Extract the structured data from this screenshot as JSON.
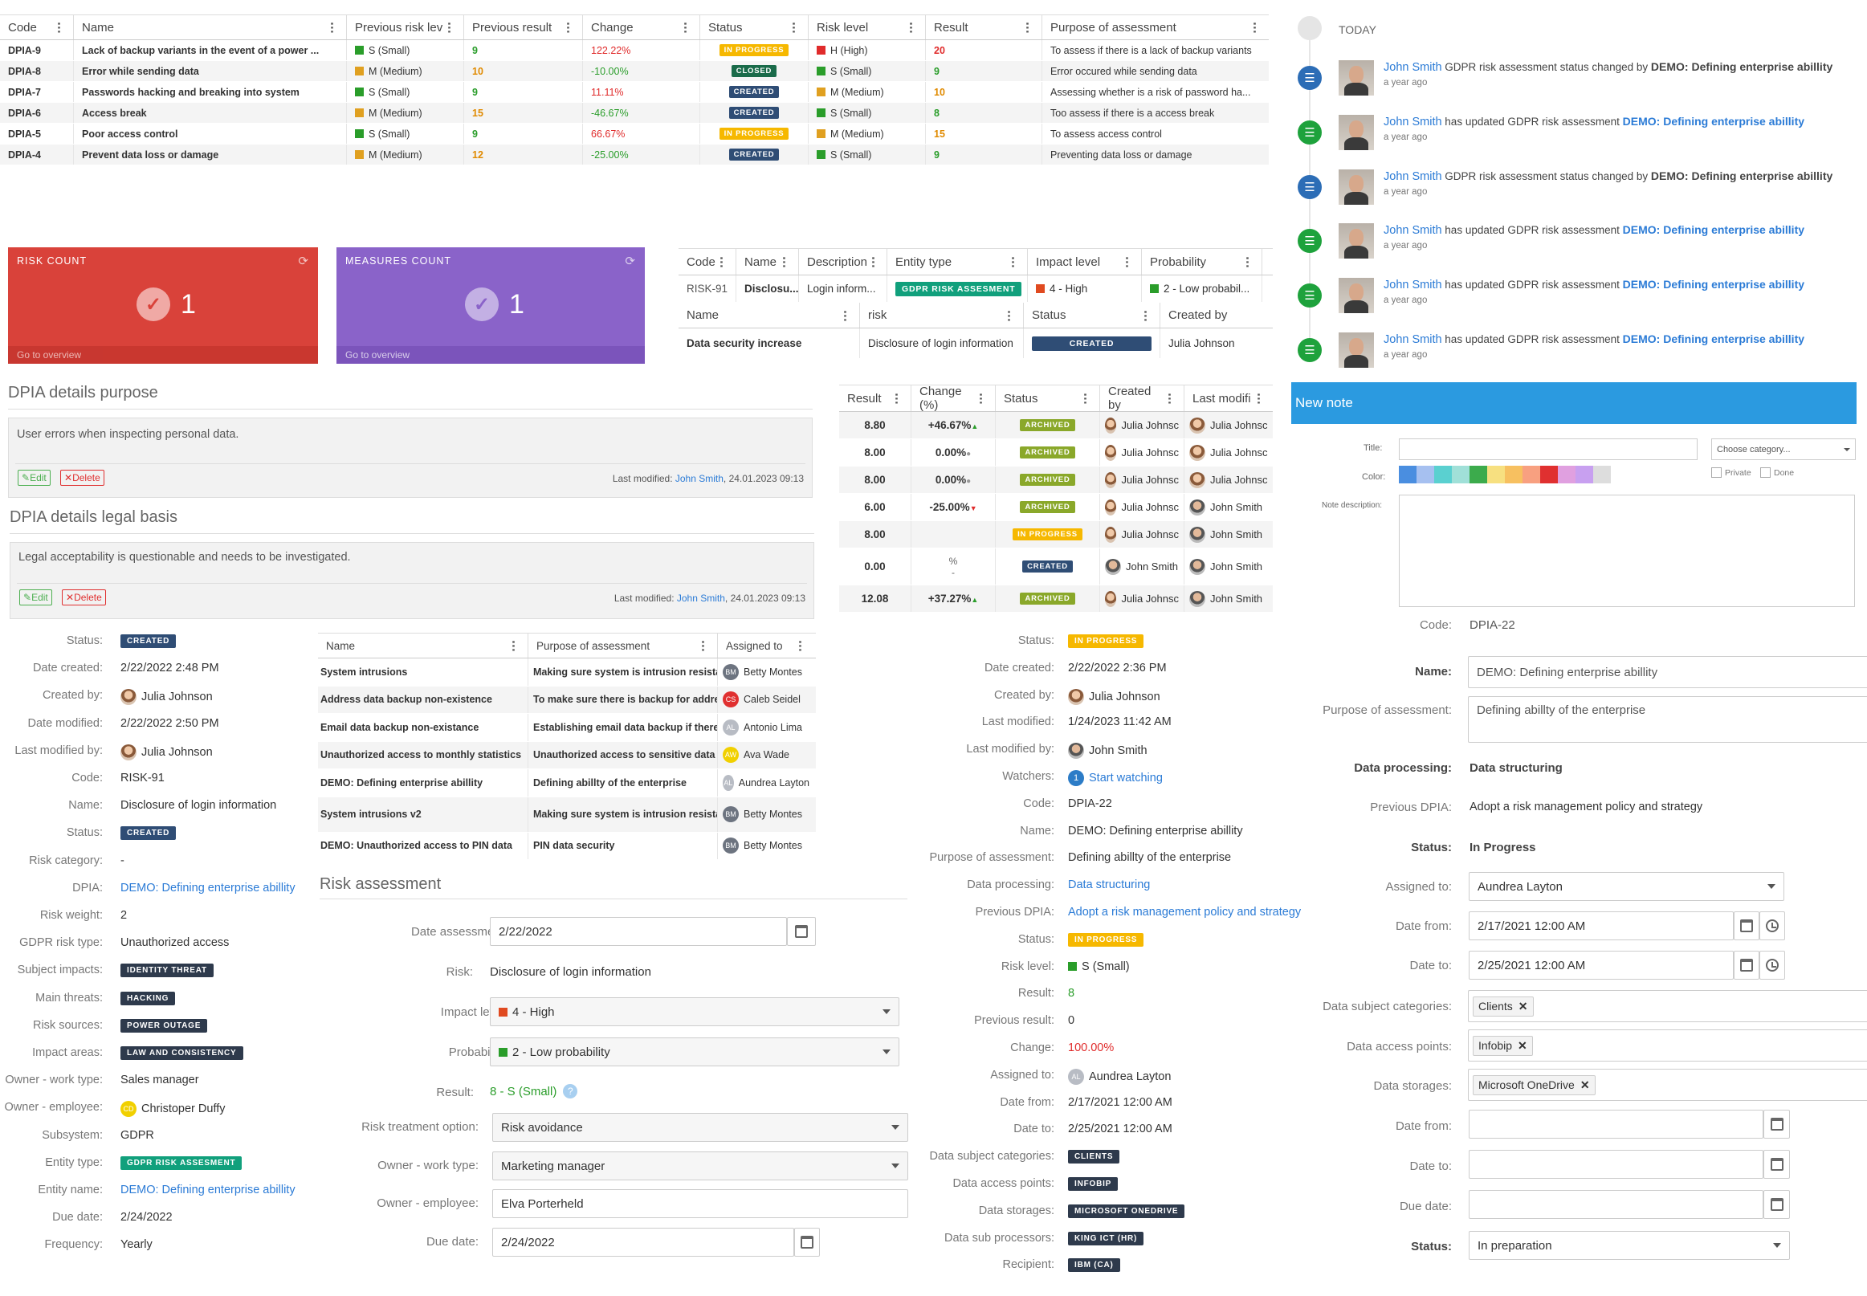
{
  "top_table": {
    "headers": [
      "Code",
      "Name",
      "Previous risk lev",
      "Previous result",
      "Change",
      "Status",
      "Risk level",
      "Result",
      "Purpose of assessment"
    ],
    "rows": [
      {
        "code": "DPIA-9",
        "name": "Lack of backup variants in the event of a power ...",
        "prev_level": "S (Small)",
        "prev_level_color": "#2a9d2a",
        "prev_result": "9",
        "change": "122.22%",
        "status": "IN PROGRESS",
        "risk_level": "H (High)",
        "risk_color": "#e02b2b",
        "result": "20",
        "purpose": "To assess if there is a lack of backup variants"
      },
      {
        "code": "DPIA-8",
        "name": "Error while sending data",
        "prev_level": "M (Medium)",
        "prev_level_color": "#e0a020",
        "prev_result": "10",
        "change": "-10.00%",
        "status": "CLOSED",
        "risk_level": "S (Small)",
        "risk_color": "#2a9d2a",
        "result": "9",
        "purpose": "Error occured while sending data"
      },
      {
        "code": "DPIA-7",
        "name": "Passwords hacking and breaking into system",
        "prev_level": "S (Small)",
        "prev_level_color": "#2a9d2a",
        "prev_result": "9",
        "change": "11.11%",
        "status": "CREATED",
        "risk_level": "M (Medium)",
        "risk_color": "#e0a020",
        "result": "10",
        "purpose": "Assessing whether is a risk of password ha..."
      },
      {
        "code": "DPIA-6",
        "name": "Access break",
        "prev_level": "M (Medium)",
        "prev_level_color": "#e0a020",
        "prev_result": "15",
        "change": "-46.67%",
        "status": "CREATED",
        "risk_level": "S (Small)",
        "risk_color": "#2a9d2a",
        "result": "8",
        "purpose": "Too assess if there is a access break"
      },
      {
        "code": "DPIA-5",
        "name": "Poor access control",
        "prev_level": "S (Small)",
        "prev_level_color": "#2a9d2a",
        "prev_result": "9",
        "change": "66.67%",
        "status": "IN PROGRESS",
        "risk_level": "M (Medium)",
        "risk_color": "#e0a020",
        "result": "15",
        "purpose": "To assess access control"
      },
      {
        "code": "DPIA-4",
        "name": "Prevent data loss or damage",
        "prev_level": "M (Medium)",
        "prev_level_color": "#e0a020",
        "prev_result": "12",
        "change": "-25.00%",
        "status": "CREATED",
        "risk_level": "S (Small)",
        "risk_color": "#2a9d2a",
        "result": "9",
        "purpose": "Preventing data loss or damage"
      }
    ]
  },
  "risk_count": {
    "label": "RISK COUNT",
    "value": "1",
    "link": "Go to overview",
    "color": "#d9423a"
  },
  "measures_count": {
    "label": "MEASURES COUNT",
    "value": "1",
    "link": "Go to overview",
    "color": "#8a63c9"
  },
  "small_table": {
    "headers1": [
      "Code",
      "Name",
      "Description",
      "Entity type",
      "Impact level",
      "Probability"
    ],
    "row1": {
      "code": "RISK-91",
      "name": "Disclosu...",
      "desc": "Login inform...",
      "entity": "GDPR RISK ASSESMENT",
      "impact": "4 - High",
      "prob": "2 - Low probabil..."
    },
    "headers2": [
      "Name",
      "risk",
      "Status",
      "Created by"
    ],
    "row2": {
      "name": "Data security increase",
      "risk": "Disclosure of login information",
      "status": "CREATED",
      "created": "Julia Johnson"
    }
  },
  "purpose_panel": {
    "title": "DPIA details purpose",
    "text": "User errors when inspecting personal data.",
    "edit": "Edit",
    "delete": "Delete",
    "modified_prefix": "Last modified: ",
    "modified_user": "John Smith",
    "modified_date": ", 24.01.2023 09:13"
  },
  "legal_panel": {
    "title": "DPIA details legal basis",
    "text": "Legal acceptability is questionable and needs to be investigated.",
    "edit": "Edit",
    "delete": "Delete",
    "modified_prefix": "Last modified: ",
    "modified_user": "John Smith",
    "modified_date": ", 24.01.2023 09:13"
  },
  "result_table": {
    "headers": [
      "Result",
      "Change (%)",
      "Status",
      "Created by",
      "Last modifi"
    ],
    "rows": [
      {
        "result": "8.80",
        "change": "+46.67%",
        "trend": "up",
        "status": "ARCHIVED",
        "created": "Julia Johnsc",
        "modified": "Julia Johnsc"
      },
      {
        "result": "8.00",
        "change": "0.00%",
        "trend": "flat",
        "status": "ARCHIVED",
        "created": "Julia Johnsc",
        "modified": "Julia Johnsc"
      },
      {
        "result": "8.00",
        "change": "0.00%",
        "trend": "flat",
        "status": "ARCHIVED",
        "created": "Julia Johnsc",
        "modified": "Julia Johnsc"
      },
      {
        "result": "6.00",
        "change": "-25.00%",
        "trend": "down",
        "status": "ARCHIVED",
        "created": "Julia Johnsc",
        "modified": "John Smith"
      },
      {
        "result": "8.00",
        "change": "",
        "trend": "",
        "status": "IN PROGRESS",
        "created": "Julia Johnsc",
        "modified": "John Smith"
      },
      {
        "result": "0.00",
        "change": "%",
        "change2": "-",
        "trend": "",
        "status": "CREATED",
        "created": "John Smith",
        "modified": "John Smith"
      },
      {
        "result": "12.08",
        "change": "+37.27%",
        "trend": "up",
        "status": "ARCHIVED",
        "created": "Julia Johnsc",
        "modified": "John Smith"
      }
    ]
  },
  "timeline": {
    "today": "TODAY",
    "items": [
      {
        "user": "John Smith",
        "action": " GDPR risk assessment status changed by ",
        "target": "DEMO: Defining enterprise abillity",
        "target_link": false,
        "time": "a year ago",
        "type": "blue"
      },
      {
        "user": "John Smith",
        "action": " has updated GDPR risk assessment ",
        "target": "DEMO: Defining enterprise abillity",
        "target_link": true,
        "time": "a year ago",
        "type": "green"
      },
      {
        "user": "John Smith",
        "action": " GDPR risk assessment status changed by ",
        "target": "DEMO: Defining enterprise abillity",
        "target_link": false,
        "time": "a year ago",
        "type": "blue"
      },
      {
        "user": "John Smith",
        "action": " has updated GDPR risk assessment ",
        "target": "DEMO: Defining enterprise abillity",
        "target_link": true,
        "time": "a year ago",
        "type": "green"
      },
      {
        "user": "John Smith",
        "action": " has updated GDPR risk assessment ",
        "target": "DEMO: Defining enterprise abillity",
        "target_link": true,
        "time": "a year ago",
        "type": "green"
      },
      {
        "user": "John Smith",
        "action": " has updated GDPR risk assessment ",
        "target": "DEMO: Defining enterprise abillity",
        "target_link": true,
        "time": "a year ago",
        "type": "green"
      }
    ]
  },
  "new_note": {
    "header": "New note",
    "title_label": "Title:",
    "category_placeholder": "Choose category...",
    "color_label": "Color:",
    "private_label": "Private",
    "done_label": "Done",
    "desc_label": "Note description:",
    "colors": [
      "#4a8ee0",
      "#a6c0f0",
      "#5ad0d0",
      "#a0e0d8",
      "#3cab4c",
      "#f7e080",
      "#f7c060",
      "#f8a080",
      "#e03030",
      "#e0a0e0",
      "#c8a0f0",
      "#dddddd"
    ]
  },
  "risk_details": {
    "status_label": "Status:",
    "status": "CREATED",
    "date_created_label": "Date created:",
    "date_created": "2/22/2022 2:48 PM",
    "created_by_label": "Created by:",
    "created_by": "Julia Johnson",
    "date_modified_label": "Date modified:",
    "date_modified": "2/22/2022 2:50 PM",
    "last_modified_by_label": "Last modified by:",
    "last_modified_by": "Julia Johnson",
    "code_label": "Code:",
    "code": "RISK-91",
    "name_label": "Name:",
    "name": "Disclosure of login information",
    "status2_label": "Status:",
    "status2": "CREATED",
    "risk_category_label": "Risk category:",
    "risk_category": "-",
    "dpia_label": "DPIA:",
    "dpia": "DEMO: Defining enterprise abillity",
    "risk_weight_label": "Risk weight:",
    "risk_weight": "2",
    "gdpr_type_label": "GDPR risk type:",
    "gdpr_type": "Unauthorized access",
    "subject_impacts_label": "Subject impacts:",
    "subject_impacts": "IDENTITY THREAT",
    "main_threats_label": "Main threats:",
    "main_threats": "HACKING",
    "risk_sources_label": "Risk sources:",
    "risk_sources": "POWER OUTAGE",
    "impact_areas_label": "Impact areas:",
    "impact_areas": "LAW AND CONSISTENCY",
    "owner_work_label": "Owner - work type:",
    "owner_work": "Sales manager",
    "owner_emp_label": "Owner - employee:",
    "owner_emp": "Christoper Duffy",
    "owner_emp_initials": "CD",
    "subsystem_label": "Subsystem:",
    "subsystem": "GDPR",
    "entity_type_label": "Entity type:",
    "entity_type": "GDPR RISK ASSESMENT",
    "entity_name_label": "Entity name:",
    "entity_name": "DEMO: Defining enterprise abillity",
    "due_date_label": "Due date:",
    "due_date": "2/24/2022",
    "frequency_label": "Frequency:",
    "frequency": "Yearly"
  },
  "mid_table": {
    "headers": [
      "Name",
      "Purpose of assessment",
      "Assigned to"
    ],
    "rows": [
      {
        "name": "System intrusions",
        "purpose": "Making sure system is intrusion resistant",
        "assigned": "Betty Montes",
        "initials": "BM",
        "color": "#6d7480"
      },
      {
        "name": "Address data backup non-existence",
        "purpose": "To make sure there is backup for addres...",
        "assigned": "Caleb Seidel",
        "initials": "CS",
        "color": "#e03030"
      },
      {
        "name": "Email data backup non-existance",
        "purpose": "Establishing email data backup if there i...",
        "assigned": "Antonio Lima",
        "initials": "AL",
        "color": "#b8bcc4"
      },
      {
        "name": "Unauthorized access to monthly statistics",
        "purpose": "Unauthorized access to sensitive data fr...",
        "assigned": "Ava Wade",
        "initials": "AW",
        "color": "#f1d000"
      },
      {
        "name": "DEMO: Defining enterprise abillity",
        "purpose": "Defining abillty of the enterprise",
        "assigned": "Aundrea Layton",
        "initials": "AL",
        "color": "#b8bcc4"
      },
      {
        "name": "System intrusions v2",
        "purpose": "Making sure system is intrusion resistant",
        "assigned": "Betty Montes",
        "initials": "BM",
        "color": "#6d7480"
      },
      {
        "name": "DEMO: Unauthorized access to PIN data",
        "purpose": "PIN data security",
        "assigned": "Betty Montes",
        "initials": "BM",
        "color": "#6d7480"
      }
    ]
  },
  "risk_assessment": {
    "title": "Risk assessment",
    "date_label": "Date assessment:",
    "date": "2/22/2022",
    "risk_label": "Risk:",
    "risk": "Disclosure of login information",
    "impact_label": "Impact level:",
    "impact": "4 - High",
    "prob_label": "Probability:",
    "prob": "2 - Low probability",
    "result_label": "Result:",
    "result": "8 - S (Small)",
    "treatment_label": "Risk treatment option:",
    "treatment": "Risk avoidance",
    "owner_work_label": "Owner - work type:",
    "owner_work": "Marketing manager",
    "owner_emp_label": "Owner - employee:",
    "owner_emp": "Elva Porterheld",
    "due_label": "Due date:",
    "due": "2/24/2022"
  },
  "dpia_details": {
    "status_label": "Status:",
    "status": "IN PROGRESS",
    "date_created_label": "Date created:",
    "date_created": "2/22/2022 2:36 PM",
    "created_by_label": "Created by:",
    "created_by": "Julia Johnson",
    "last_modified_label": "Last modified:",
    "last_modified": "1/24/2023 11:42 AM",
    "last_modified_by_label": "Last modified by:",
    "last_modified_by": "John Smith",
    "watchers_label": "Watchers:",
    "watchers_count": "1",
    "watchers": "Start watching",
    "code_label": "Code:",
    "code": "DPIA-22",
    "name_label": "Name:",
    "name": "DEMO: Defining enterprise abillity",
    "purpose_label": "Purpose of assessment:",
    "purpose": "Defining abillty of the enterprise",
    "data_processing_label": "Data processing:",
    "data_processing": "Data structuring",
    "prev_dpia_label": "Previous DPIA:",
    "prev_dpia": "Adopt a risk management policy and strategy",
    "status2_label": "Status:",
    "status2": "IN PROGRESS",
    "risk_level_label": "Risk level:",
    "risk_level": "S (Small)",
    "result_label": "Result:",
    "result": "8",
    "prev_result_label": "Previous result:",
    "prev_result": "0",
    "change_label": "Change:",
    "change": "100.00%",
    "assigned_label": "Assigned to:",
    "assigned": "Aundrea Layton",
    "assigned_initials": "AL",
    "date_from_label": "Date from:",
    "date_from": "2/17/2021 12:00 AM",
    "date_to_label": "Date to:",
    "date_to": "2/25/2021 12:00 AM",
    "subj_cat_label": "Data subject categories:",
    "subj_cat": "CLIENTS",
    "access_label": "Data access points:",
    "access": "INFOBIP",
    "storages_label": "Data storages:",
    "storages": "MICROSOFT ONEDRIVE",
    "sub_proc_label": "Data sub processors:",
    "sub_proc": "KING ICT (HR)",
    "recipient_label": "Recipient:",
    "recipient": "IBM (CA)"
  },
  "edit_form": {
    "code_label": "Code:",
    "code": "DPIA-22",
    "name_label": "Name:",
    "name": "DEMO: Defining enterprise abillity",
    "purpose_label": "Purpose of assessment:",
    "purpose": "Defining abillty of the enterprise",
    "data_processing_label": "Data processing:",
    "data_processing": "Data structuring",
    "prev_dpia_label": "Previous DPIA:",
    "prev_dpia": "Adopt a risk management policy and strategy",
    "status_label": "Status:",
    "status": "In Progress",
    "assigned_label": "Assigned to:",
    "assigned": "Aundrea Layton",
    "date_from_label": "Date from:",
    "date_from": "2/17/2021 12:00 AM",
    "date_to_label": "Date to:",
    "date_to": "2/25/2021 12:00 AM",
    "subj_cat_label": "Data subject categories:",
    "subj_cat": "Clients",
    "access_label": "Data access points:",
    "access": "Infobip",
    "storages_label": "Data storages:",
    "storages": "Microsoft OneDrive",
    "date_from2_label": "Date from:",
    "date_to2_label": "Date to:",
    "due_label": "Due date:",
    "status2_label": "Status:",
    "status2": "In preparation"
  }
}
